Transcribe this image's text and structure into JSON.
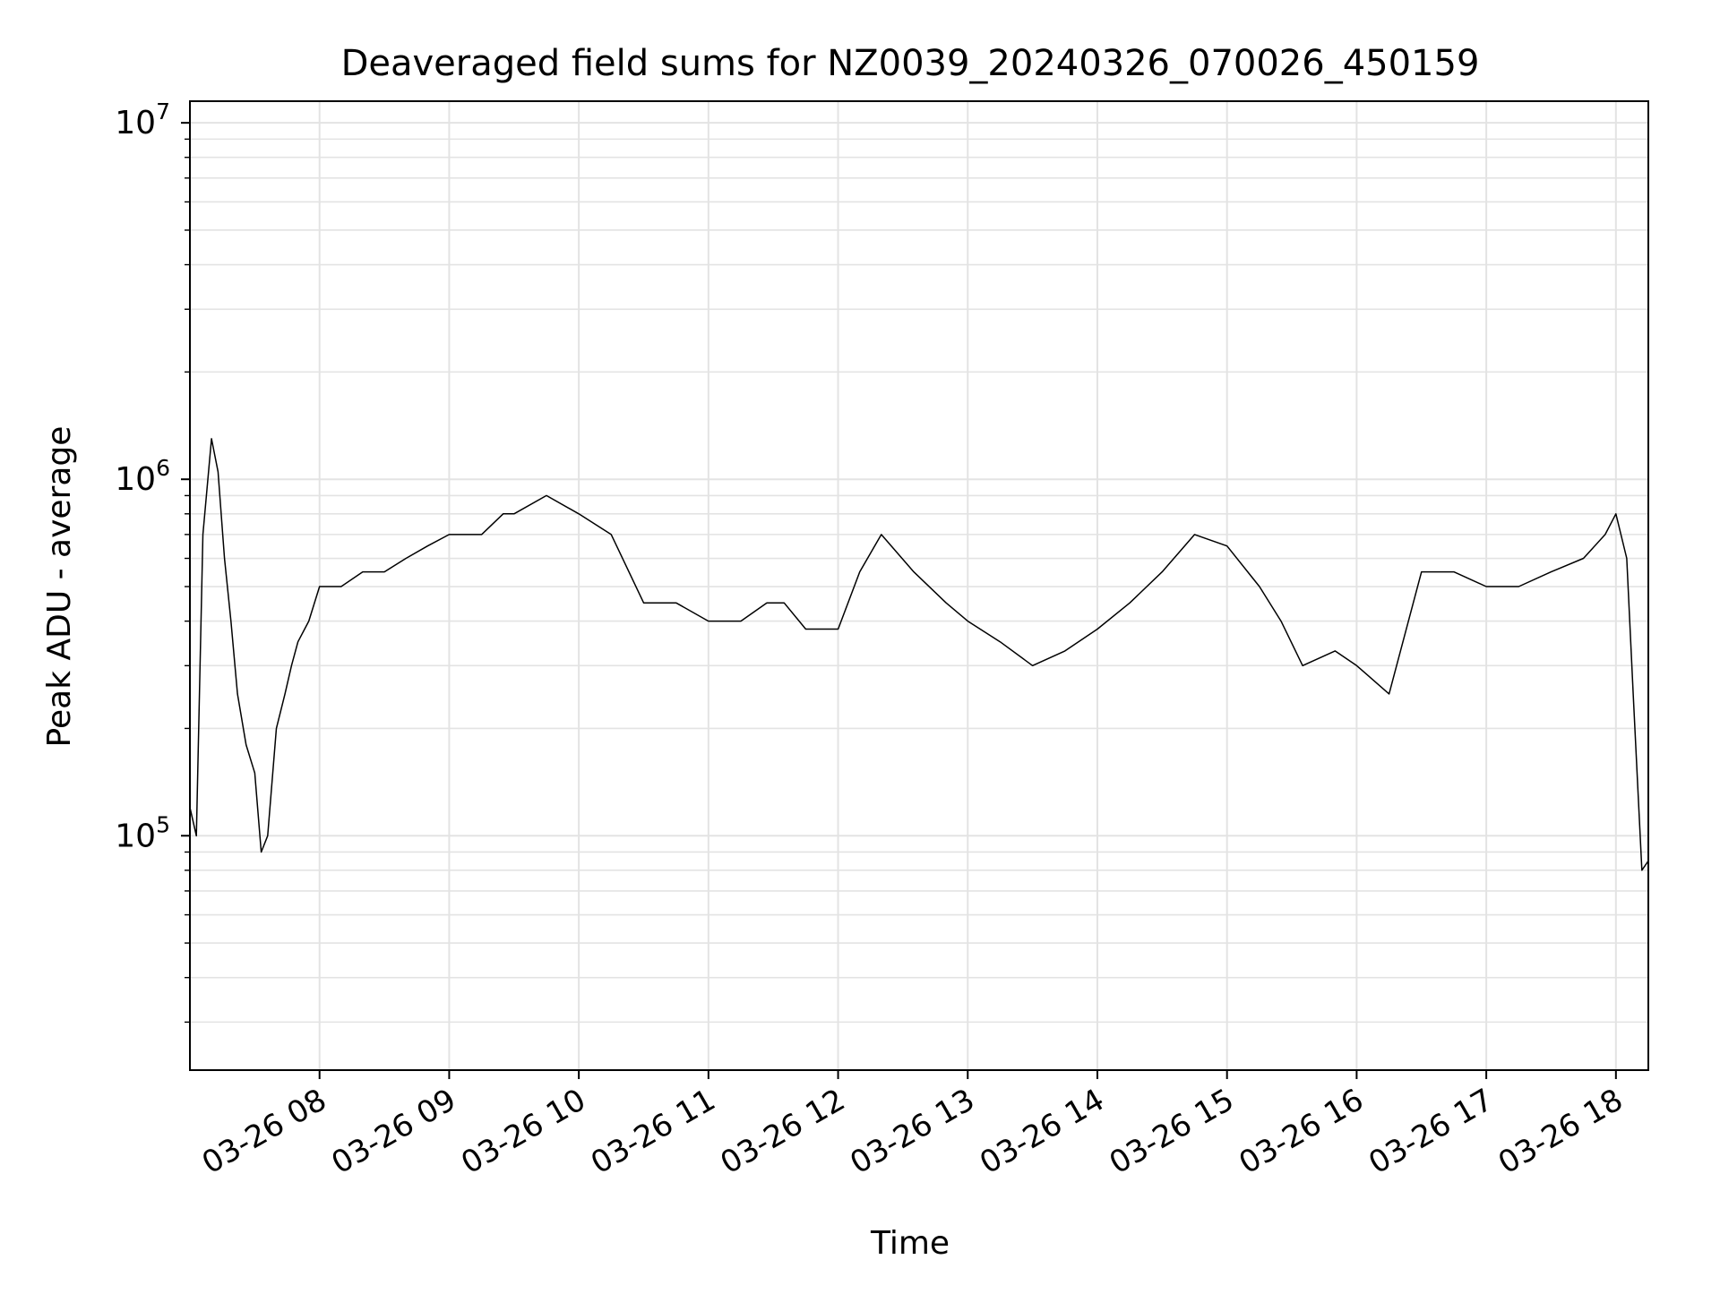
{
  "chart_data": {
    "type": "line",
    "title": "Deaveraged field sums for NZ0039_20240326_070026_450159",
    "xlabel": "Time",
    "ylabel": "Peak ADU - average",
    "y_scale": "log",
    "xlim": [
      "2024-03-26 07:00",
      "2024-03-26 18:15"
    ],
    "ylim": [
      22000,
      11500000
    ],
    "x_ticks": [
      "2024-03-26 08:00",
      "2024-03-26 09:00",
      "2024-03-26 10:00",
      "2024-03-26 11:00",
      "2024-03-26 12:00",
      "2024-03-26 13:00",
      "2024-03-26 14:00",
      "2024-03-26 15:00",
      "2024-03-26 16:00",
      "2024-03-26 17:00",
      "2024-03-26 18:00"
    ],
    "x_tick_labels": [
      "03-26 08",
      "03-26 09",
      "03-26 10",
      "03-26 11",
      "03-26 12",
      "03-26 13",
      "03-26 14",
      "03-26 15",
      "03-26 16",
      "03-26 17",
      "03-26 18"
    ],
    "y_tick_labels": [
      {
        "base": "10",
        "exp": "5",
        "value": 100000
      },
      {
        "base": "10",
        "exp": "6",
        "value": 1000000
      },
      {
        "base": "10",
        "exp": "7",
        "value": 10000000
      }
    ],
    "grid": true,
    "line_color": "#000000",
    "series": [
      {
        "x": [
          "2024-03-26 07:00",
          "2024-03-26 07:03",
          "2024-03-26 07:06",
          "2024-03-26 07:10",
          "2024-03-26 07:13",
          "2024-03-26 07:16",
          "2024-03-26 07:19",
          "2024-03-26 07:22",
          "2024-03-26 07:26",
          "2024-03-26 07:30",
          "2024-03-26 07:33",
          "2024-03-26 07:36",
          "2024-03-26 07:40",
          "2024-03-26 07:44",
          "2024-03-26 07:47",
          "2024-03-26 07:50",
          "2024-03-26 07:55",
          "2024-03-26 08:00",
          "2024-03-26 08:10",
          "2024-03-26 08:20",
          "2024-03-26 08:30",
          "2024-03-26 08:40",
          "2024-03-26 08:50",
          "2024-03-26 09:00",
          "2024-03-26 09:15",
          "2024-03-26 09:25",
          "2024-03-26 09:30",
          "2024-03-26 09:45",
          "2024-03-26 10:00",
          "2024-03-26 10:15",
          "2024-03-26 10:30",
          "2024-03-26 10:45",
          "2024-03-26 11:00",
          "2024-03-26 11:15",
          "2024-03-26 11:27",
          "2024-03-26 11:35",
          "2024-03-26 11:45",
          "2024-03-26 12:00",
          "2024-03-26 12:10",
          "2024-03-26 12:20",
          "2024-03-26 12:35",
          "2024-03-26 12:50",
          "2024-03-26 13:00",
          "2024-03-26 13:15",
          "2024-03-26 13:30",
          "2024-03-26 13:45",
          "2024-03-26 14:00",
          "2024-03-26 14:15",
          "2024-03-26 14:30",
          "2024-03-26 14:45",
          "2024-03-26 15:00",
          "2024-03-26 15:15",
          "2024-03-26 15:25",
          "2024-03-26 15:35",
          "2024-03-26 15:50",
          "2024-03-26 16:00",
          "2024-03-26 16:15",
          "2024-03-26 16:30",
          "2024-03-26 16:45",
          "2024-03-26 17:00",
          "2024-03-26 17:15",
          "2024-03-26 17:30",
          "2024-03-26 17:45",
          "2024-03-26 17:55",
          "2024-03-26 18:00",
          "2024-03-26 18:05",
          "2024-03-26 18:08",
          "2024-03-26 18:12",
          "2024-03-26 18:15"
        ],
        "y": [
          120000,
          100000,
          700000,
          1300000,
          1050000,
          600000,
          400000,
          250000,
          180000,
          150000,
          90000,
          100000,
          200000,
          250000,
          300000,
          350000,
          400000,
          500000,
          500000,
          550000,
          550000,
          600000,
          650000,
          700000,
          700000,
          800000,
          800000,
          900000,
          800000,
          700000,
          450000,
          450000,
          400000,
          400000,
          450000,
          450000,
          380000,
          380000,
          550000,
          700000,
          550000,
          450000,
          400000,
          350000,
          300000,
          330000,
          380000,
          450000,
          550000,
          700000,
          650000,
          500000,
          400000,
          300000,
          330000,
          300000,
          250000,
          550000,
          550000,
          500000,
          500000,
          550000,
          600000,
          700000,
          800000,
          600000,
          250000,
          80000,
          85000
        ]
      }
    ]
  }
}
